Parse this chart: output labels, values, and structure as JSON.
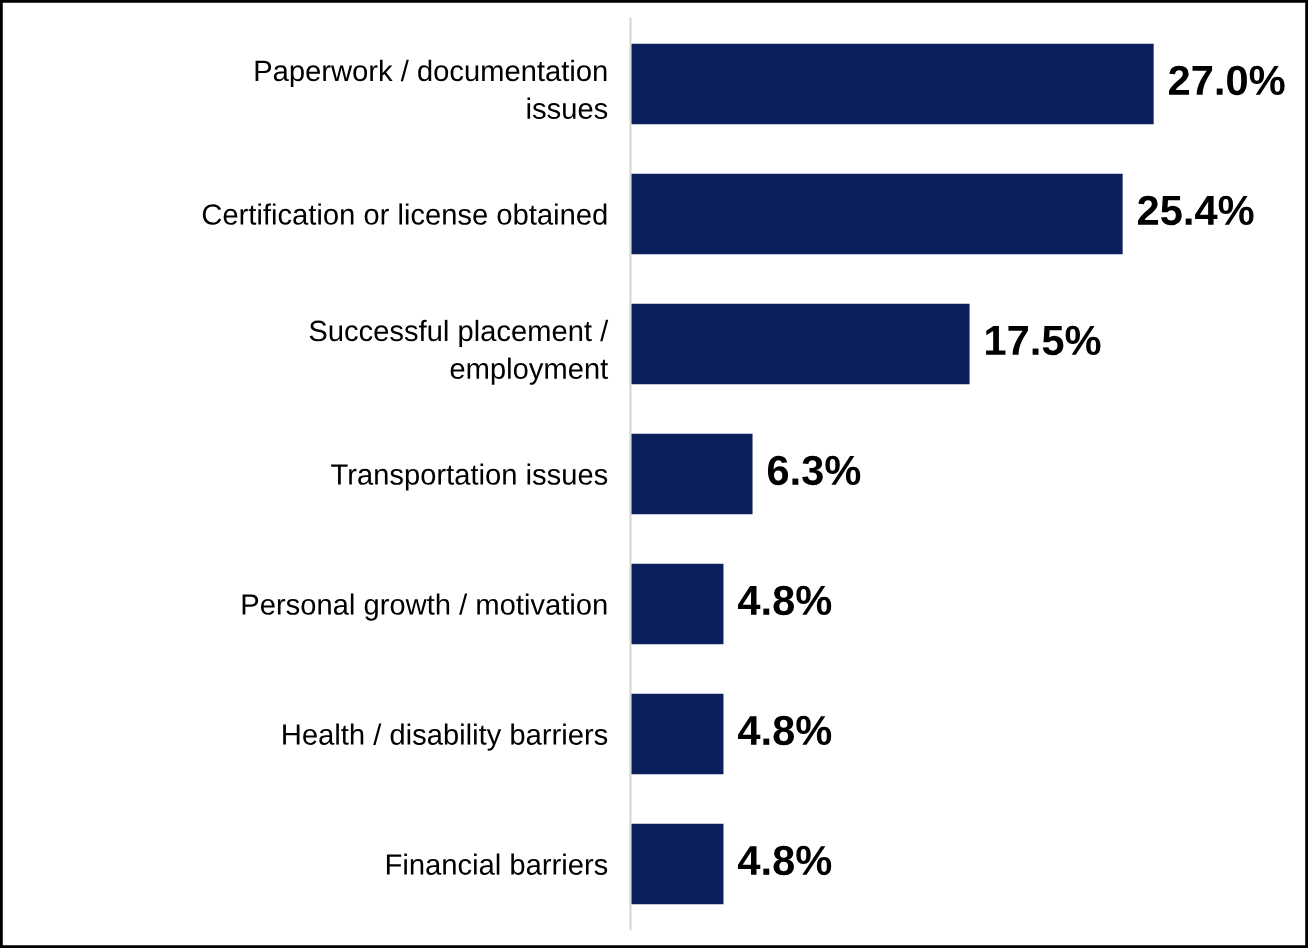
{
  "chart_data": {
    "type": "bar",
    "orientation": "horizontal",
    "categories": [
      "Paperwork / documentation\nissues",
      "Certification or license obtained",
      "Successful placement /\nemployment",
      "Transportation issues",
      "Personal growth / motivation",
      "Health / disability barriers",
      "Financial barriers"
    ],
    "values": [
      27.0,
      25.4,
      17.5,
      6.3,
      4.8,
      4.8,
      4.8
    ],
    "value_labels": [
      "27.0%",
      "25.4%",
      "17.5%",
      "6.3%",
      "4.8%",
      "4.8%",
      "4.8%"
    ],
    "color": "#0b1f5c",
    "grid": false,
    "legend": false
  }
}
